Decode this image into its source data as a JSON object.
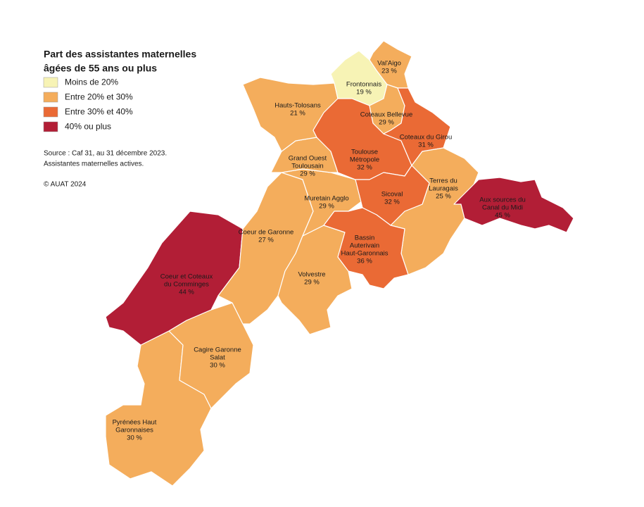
{
  "title": [
    "Part des assistantes maternelles",
    "âgées de 55 ans ou plus"
  ],
  "legend": [
    {
      "label": "Moins de 20%",
      "color": "#f7f3b5"
    },
    {
      "label": "Entre 20% et 30%",
      "color": "#f4ad5c"
    },
    {
      "label": "Entre 30% et 40%",
      "color": "#ea6a35"
    },
    {
      "label": "40% ou plus",
      "color": "#b21e36"
    }
  ],
  "source": [
    "Source : Caf 31, au 31 décembre 2023.",
    "Assistantes maternelles actives."
  ],
  "copyright": "© AUAT 2024",
  "regions": [
    {
      "name": [
        "Pyrénées Haut",
        "Garonnaises"
      ],
      "value": 30,
      "value_label": "30 %",
      "color": "#f4ad5c"
    },
    {
      "name": [
        "Cagire Garonne",
        "Salat"
      ],
      "value": 30,
      "value_label": "30 %",
      "color": "#f4ad5c"
    },
    {
      "name": [
        "Coeur et Coteaux",
        "du Comminges"
      ],
      "value": 44,
      "value_label": "44 %",
      "color": "#b21e36"
    },
    {
      "name": [
        "Coeur de Garonne"
      ],
      "value": 27,
      "value_label": "27 %",
      "color": "#f4ad5c"
    },
    {
      "name": [
        "Volvestre"
      ],
      "value": 29,
      "value_label": "29 %",
      "color": "#f4ad5c"
    },
    {
      "name": [
        "Muretain Agglo"
      ],
      "value": 29,
      "value_label": "29 %",
      "color": "#f4ad5c"
    },
    {
      "name": [
        "Grand Ouest",
        "Toulousain"
      ],
      "value": 29,
      "value_label": "29 %",
      "color": "#f4ad5c"
    },
    {
      "name": [
        "Hauts-Tolosans"
      ],
      "value": 21,
      "value_label": "21 %",
      "color": "#f4ad5c"
    },
    {
      "name": [
        "Frontonnais"
      ],
      "value": 19,
      "value_label": "19 %",
      "color": "#f7f3b5"
    },
    {
      "name": [
        "Val'Aigo"
      ],
      "value": 23,
      "value_label": "23 %",
      "color": "#f4ad5c"
    },
    {
      "name": [
        "Toulouse",
        "Métropole"
      ],
      "value": 32,
      "value_label": "32 %",
      "color": "#ea6a35"
    },
    {
      "name": [
        "Coteaux Bellevue"
      ],
      "value": 29,
      "value_label": "29 %",
      "color": "#f4ad5c"
    },
    {
      "name": [
        "Coteaux du Girou"
      ],
      "value": 31,
      "value_label": "31 %",
      "color": "#ea6a35"
    },
    {
      "name": [
        "Terres du",
        "Lauragais"
      ],
      "value": 25,
      "value_label": "25 %",
      "color": "#f4ad5c"
    },
    {
      "name": [
        "Sicoval"
      ],
      "value": 32,
      "value_label": "32 %",
      "color": "#ea6a35"
    },
    {
      "name": [
        "Bassin",
        "Auterivain",
        "Haut-Garonnais"
      ],
      "value": 36,
      "value_label": "36 %",
      "color": "#ea6a35"
    },
    {
      "name": [
        "Aux sources du",
        "Canal du Midi"
      ],
      "value": 45,
      "value_label": "45 %",
      "color": "#b21e36"
    }
  ]
}
